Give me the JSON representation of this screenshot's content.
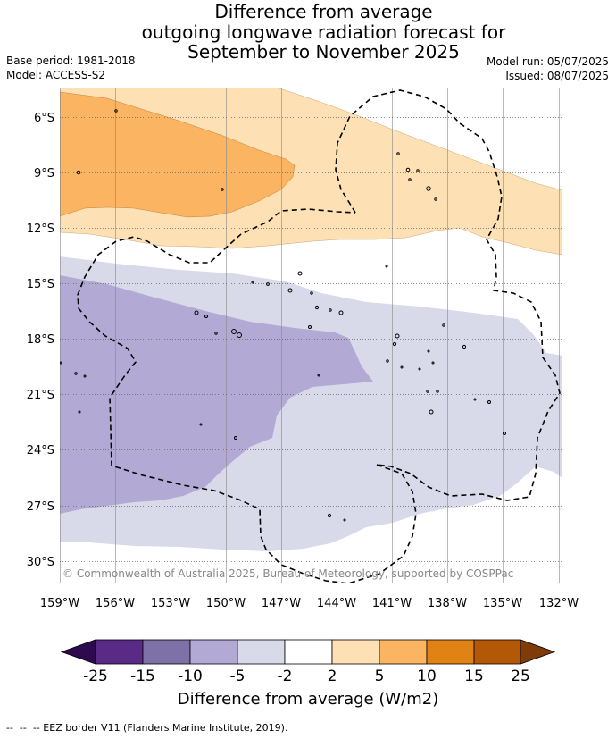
{
  "title": {
    "line1": "Difference from average",
    "line2": "outgoing longwave radiation forecast for",
    "line3": "September to November 2025"
  },
  "meta": {
    "base_period": "Base period: 1981-2018",
    "model": "Model: ACCESS-S2",
    "model_run": "Model run: 05/07/2025",
    "issued": "Issued: 08/07/2025"
  },
  "map": {
    "lon_ticks": [
      "159°W",
      "156°W",
      "153°W",
      "150°W",
      "147°W",
      "144°W",
      "141°W",
      "138°W",
      "135°W",
      "132°W"
    ],
    "lat_ticks": [
      "6°S",
      "9°S",
      "12°S",
      "15°S",
      "18°S",
      "21°S",
      "24°S",
      "27°S",
      "30°S"
    ],
    "copyright": "© Commonwealth of Australia 2025, Bureau of Meteorology, supported by COSPPac",
    "grid": true
  },
  "legend": {
    "title": "Difference from average (W/m2)",
    "labels": [
      "-25",
      "-15",
      "-10",
      "-5",
      "-2",
      "2",
      "5",
      "10",
      "15",
      "25"
    ],
    "colors": [
      "#2d0b4e",
      "#5b2a86",
      "#7e71a8",
      "#b2aad4",
      "#d8d9e9",
      "#ffffff",
      "#fde0b4",
      "#fbb461",
      "#e08214",
      "#b35806",
      "#7f3b08"
    ]
  },
  "footer": {
    "eez_text": "--  --  -- EEZ border V11 (Flanders Marine Institute, 2019)."
  }
}
